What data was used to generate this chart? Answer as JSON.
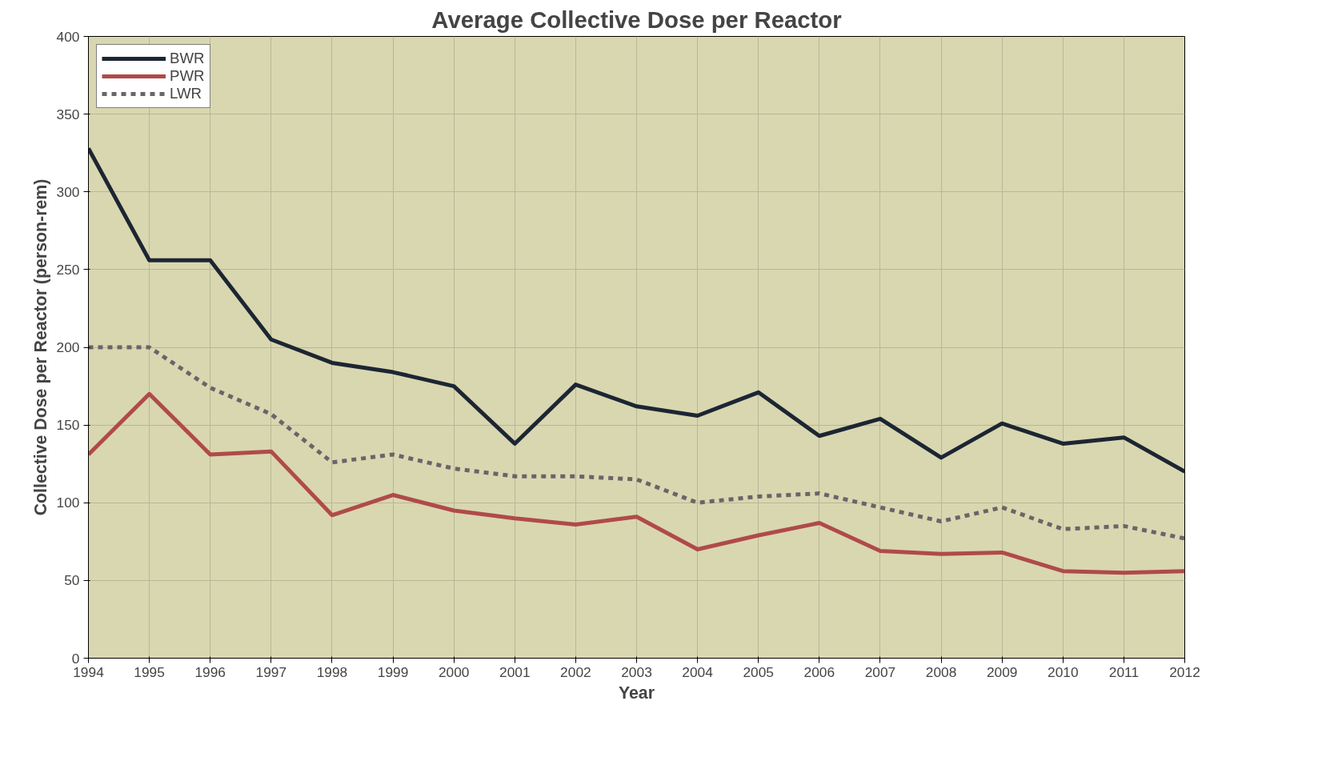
{
  "chart_data": {
    "type": "line",
    "title": "Average Collective Dose per Reactor",
    "xlabel": "Year",
    "ylabel": "Collective Dose per Reactor (person-rem)",
    "x": [
      1994,
      1995,
      1996,
      1997,
      1998,
      1999,
      2000,
      2001,
      2002,
      2003,
      2004,
      2005,
      2006,
      2007,
      2008,
      2009,
      2010,
      2011,
      2012
    ],
    "series": [
      {
        "name": "BWR",
        "color": "#1c2633",
        "values": [
          328,
          256,
          256,
          205,
          190,
          184,
          175,
          138,
          176,
          162,
          156,
          171,
          143,
          154,
          129,
          151,
          138,
          142,
          120
        ]
      },
      {
        "name": "PWR",
        "color": "#b04a4a",
        "values": [
          131,
          170,
          131,
          133,
          92,
          105,
          95,
          90,
          86,
          91,
          70,
          79,
          87,
          69,
          67,
          68,
          56,
          55,
          56
        ]
      },
      {
        "name": "LWR",
        "color": "#6b6468",
        "line_style": "dashed",
        "values": [
          200,
          200,
          174,
          157,
          126,
          131,
          122,
          117,
          117,
          115,
          100,
          104,
          106,
          97,
          88,
          97,
          83,
          85,
          77
        ]
      }
    ],
    "xlim": [
      1994,
      2012
    ],
    "xticks": [
      1994,
      1995,
      1996,
      1997,
      1998,
      1999,
      2000,
      2001,
      2002,
      2003,
      2004,
      2005,
      2006,
      2007,
      2008,
      2009,
      2010,
      2011,
      2012
    ],
    "ylim": [
      0,
      400
    ],
    "yticks": [
      0,
      50,
      100,
      150,
      200,
      250,
      300,
      350,
      400
    ],
    "grid": true,
    "legend": "top left",
    "line_style": "solid",
    "marker": "none"
  }
}
